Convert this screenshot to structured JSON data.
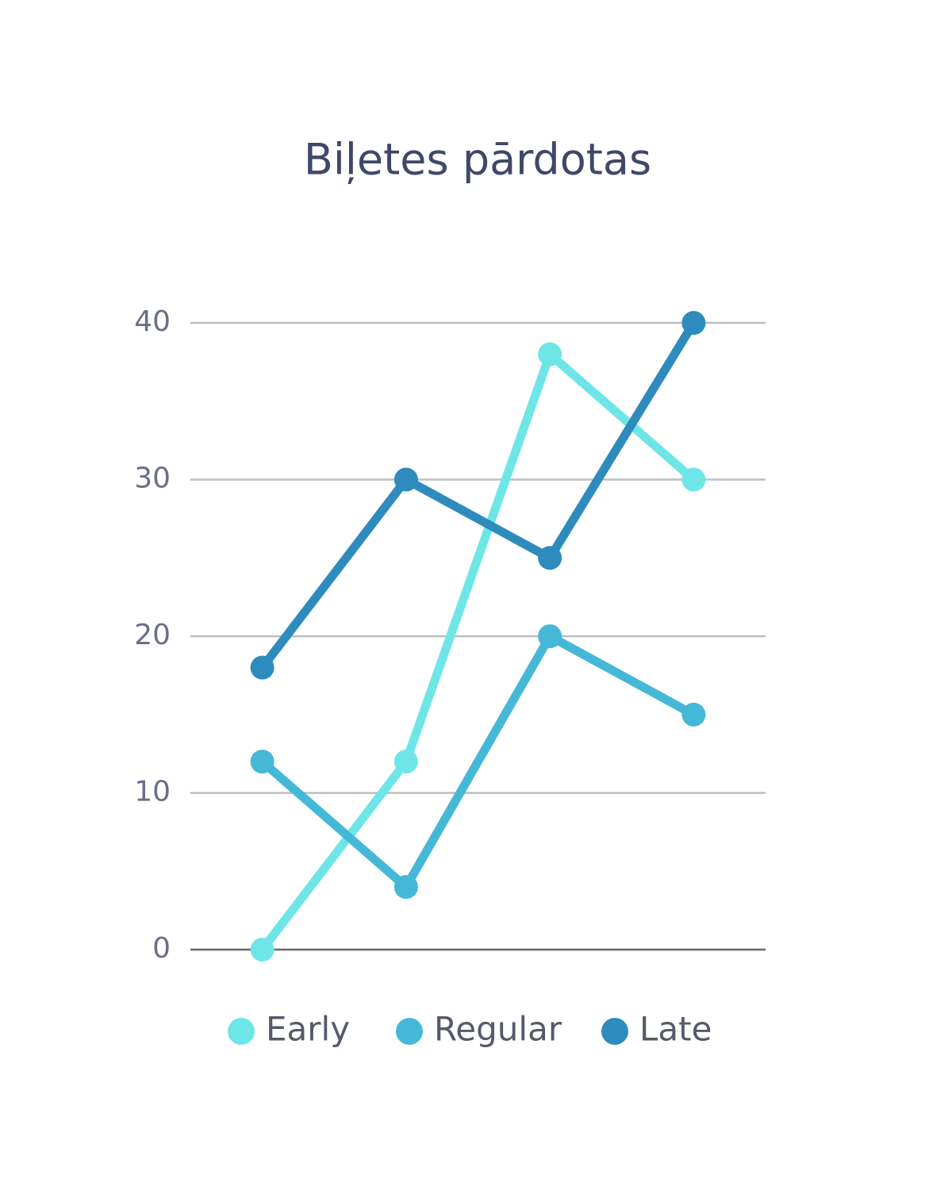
{
  "chart_data": {
    "type": "line",
    "title": "Biļetes pārdotas",
    "categories": [
      null,
      null,
      null,
      null
    ],
    "series": [
      {
        "name": "Early",
        "color": "#6ee6e8",
        "values": [
          0,
          12,
          38,
          30
        ]
      },
      {
        "name": "Regular",
        "color": "#45b8d8",
        "values": [
          12,
          4,
          20,
          15
        ]
      },
      {
        "name": "Late",
        "color": "#2e8bbd",
        "values": [
          18,
          30,
          25,
          40
        ]
      }
    ],
    "ylim": [
      0,
      40
    ],
    "yticks": [
      0,
      10,
      20,
      30,
      40
    ],
    "grid": true,
    "legend": "bottom"
  }
}
